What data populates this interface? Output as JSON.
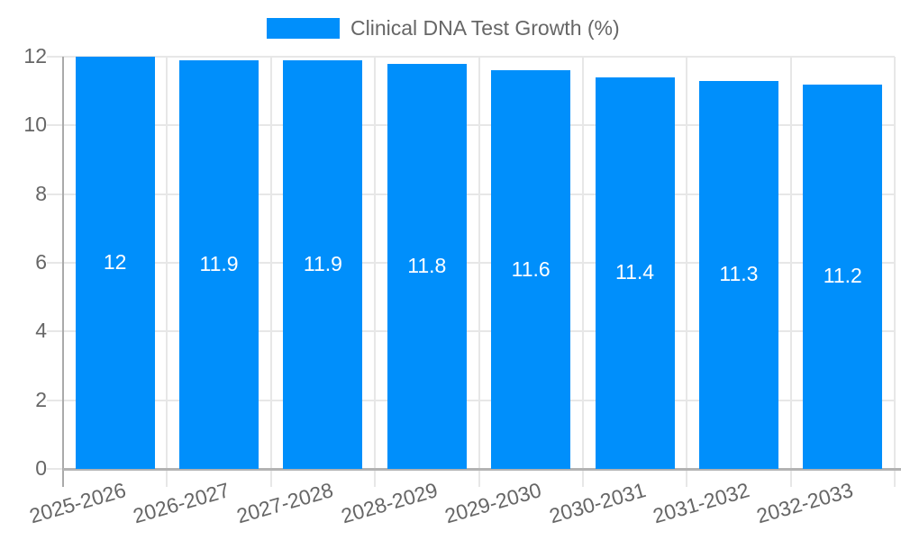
{
  "legend": {
    "label": "Clinical DNA Test Growth (%)"
  },
  "colors": {
    "bar": "#008FFB",
    "value_label": "#ffffff",
    "axis_text": "#666666",
    "gridline": "#e7e7e7",
    "axis_line": "#aaaaaa",
    "baseline": "#b3b3b3",
    "background": "#ffffff"
  },
  "chart_data": {
    "type": "bar",
    "title": "Clinical DNA Test Growth (%)",
    "categories": [
      "2025-2026",
      "2026-2027",
      "2027-2028",
      "2028-2029",
      "2029-2030",
      "2030-2031",
      "2031-2032",
      "2032-2033"
    ],
    "values": [
      12,
      11.9,
      11.9,
      11.8,
      11.6,
      11.4,
      11.3,
      11.2
    ],
    "value_labels": [
      "12",
      "11.9",
      "11.9",
      "11.8",
      "11.6",
      "11.4",
      "11.3",
      "11.2"
    ],
    "xlabel": "",
    "ylabel": "",
    "ylim": [
      0,
      12
    ],
    "yticks": [
      0,
      2,
      4,
      6,
      8,
      10,
      12
    ],
    "grid": true,
    "legend_position": "top-center",
    "bar_label_position": "center-inside",
    "x_label_rotation_deg": -16
  }
}
